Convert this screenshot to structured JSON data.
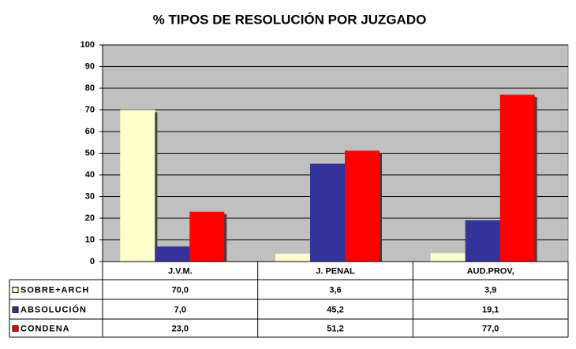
{
  "chart_data": {
    "type": "bar",
    "title": "% TIPOS DE RESOLUCIÓN POR JUZGADO",
    "categories": [
      "J.V.M.",
      "J. PENAL",
      "AUD.PROV,"
    ],
    "series": [
      {
        "name": "SOBRE+ARCH",
        "color": "#ffffcc",
        "values": [
          70.0,
          3.6,
          3.9
        ],
        "value_labels": [
          "70,0",
          "3,6",
          "3,9"
        ]
      },
      {
        "name": "ABSOLUCIÓN",
        "color": "#333399",
        "values": [
          7.0,
          45.2,
          19.1
        ],
        "value_labels": [
          "7,0",
          "45,2",
          "19,1"
        ]
      },
      {
        "name": "CONDENA",
        "color": "#ff0000",
        "values": [
          23.0,
          51.2,
          77.0
        ],
        "value_labels": [
          "23,0",
          "51,2",
          "77,0"
        ]
      }
    ],
    "ylim": [
      0,
      100
    ],
    "yticks": [
      0,
      10,
      20,
      30,
      40,
      50,
      60,
      70,
      80,
      90,
      100
    ],
    "grid": true
  }
}
